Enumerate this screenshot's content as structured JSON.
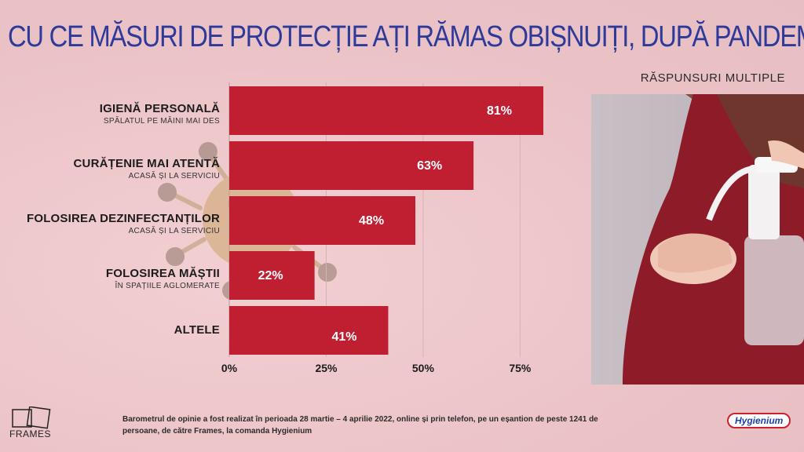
{
  "title": "CU CE MĂSURI DE PROTECȚIE AȚI RĂMAS OBIȘNUIȚI, DUPĂ PANDEMIE",
  "subtitle": "RĂSPUNSURI MULTIPLE",
  "colors": {
    "bar": "#c01f32",
    "title": "#2e3a9a",
    "background": "#eec9cc"
  },
  "chart_data": {
    "type": "bar",
    "orientation": "horizontal",
    "categories": [
      {
        "label": "IGIENĂ PERSONALĂ",
        "sublabel": "SPĂLATUL PE MÂINI MAI DES"
      },
      {
        "label": "CURĂȚENIE MAI ATENTĂ",
        "sublabel": "ACASĂ ȘI LA SERVICIU"
      },
      {
        "label": "FOLOSIREA DEZINFECTANȚILOR",
        "sublabel": "ACASĂ ȘI LA SERVICIU"
      },
      {
        "label": "FOLOSIREA MĂȘTII",
        "sublabel": "ÎN SPAȚIILE AGLOMERATE"
      },
      {
        "label": "ALTELE",
        "sublabel": ""
      }
    ],
    "values": [
      81,
      63,
      48,
      22,
      41
    ],
    "value_labels": [
      "81%",
      "63%",
      "48%",
      "22%",
      "41%"
    ],
    "x_ticks": [
      0,
      25,
      50,
      75
    ],
    "x_tick_labels": [
      "0%",
      "25%",
      "50%",
      "75%"
    ],
    "xlim": [
      0,
      81
    ],
    "grid": true
  },
  "footer": {
    "note": "Barometrul de opinie a fost realizat în perioada 28 martie – 4 aprilie 2022, online și prin telefon, pe un eșantion de peste 1241 de persoane, de către Frames, la comanda Hygienium",
    "left_logo_text": "FRAMES",
    "right_logo_text": "Hygienium"
  }
}
